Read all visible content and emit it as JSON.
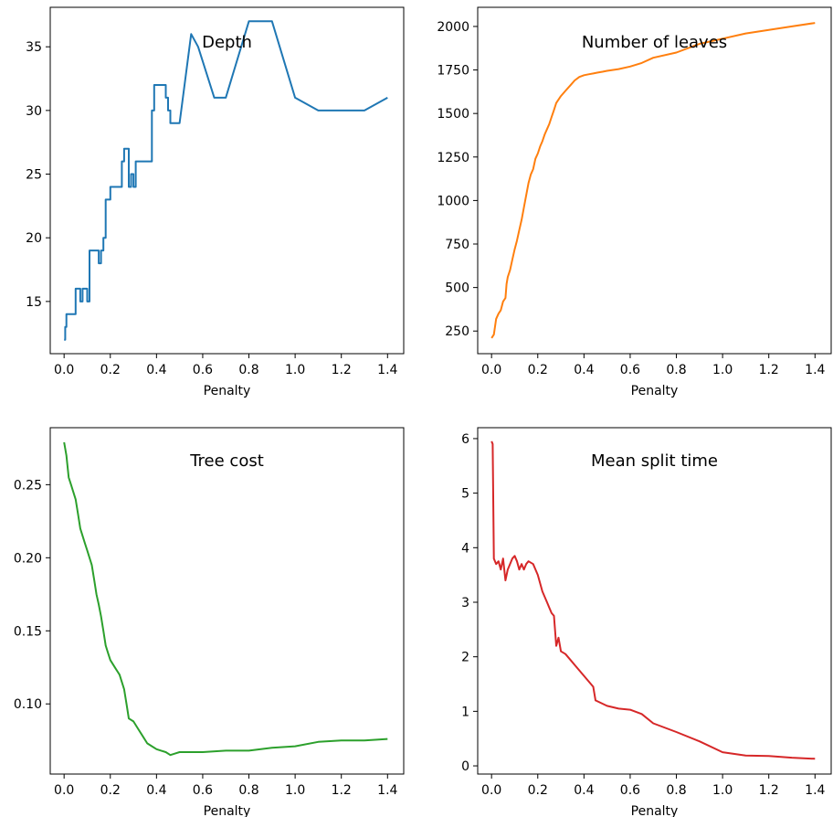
{
  "chart_data": [
    {
      "type": "line",
      "title": "Depth",
      "xlabel": "Penalty",
      "ylabel": "",
      "xlim": [
        -0.06,
        1.47
      ],
      "ylim": [
        10.9,
        38.1
      ],
      "xticks": [
        0.0,
        0.2,
        0.4,
        0.6,
        0.8,
        1.0,
        1.2,
        1.4
      ],
      "xtick_labels": [
        "0.0",
        "0.2",
        "0.4",
        "0.6",
        "0.8",
        "1.0",
        "1.2",
        "1.4"
      ],
      "yticks": [
        15,
        20,
        25,
        30,
        35
      ],
      "ytick_labels": [
        "15",
        "20",
        "25",
        "30",
        "35"
      ],
      "grid": false,
      "series": [
        {
          "color": "#1f77b4",
          "points": [
            [
              0.0,
              12
            ],
            [
              0.005,
              12
            ],
            [
              0.005,
              13
            ],
            [
              0.01,
              13
            ],
            [
              0.01,
              14
            ],
            [
              0.05,
              14
            ],
            [
              0.05,
              16
            ],
            [
              0.07,
              16
            ],
            [
              0.07,
              15
            ],
            [
              0.08,
              15
            ],
            [
              0.08,
              16
            ],
            [
              0.1,
              16
            ],
            [
              0.1,
              15
            ],
            [
              0.11,
              15
            ],
            [
              0.11,
              19
            ],
            [
              0.15,
              19
            ],
            [
              0.15,
              18
            ],
            [
              0.16,
              18
            ],
            [
              0.16,
              19
            ],
            [
              0.17,
              19
            ],
            [
              0.17,
              20
            ],
            [
              0.18,
              20
            ],
            [
              0.18,
              23
            ],
            [
              0.2,
              23
            ],
            [
              0.2,
              24
            ],
            [
              0.25,
              24
            ],
            [
              0.25,
              26
            ],
            [
              0.26,
              26
            ],
            [
              0.26,
              27
            ],
            [
              0.28,
              27
            ],
            [
              0.28,
              24
            ],
            [
              0.29,
              24
            ],
            [
              0.29,
              25
            ],
            [
              0.3,
              25
            ],
            [
              0.3,
              24
            ],
            [
              0.31,
              24
            ],
            [
              0.31,
              26
            ],
            [
              0.38,
              26
            ],
            [
              0.38,
              30
            ],
            [
              0.39,
              30
            ],
            [
              0.39,
              32
            ],
            [
              0.44,
              32
            ],
            [
              0.44,
              31
            ],
            [
              0.45,
              31
            ],
            [
              0.45,
              30
            ],
            [
              0.46,
              30
            ],
            [
              0.46,
              29
            ],
            [
              0.5,
              29
            ],
            [
              0.55,
              36
            ],
            [
              0.58,
              35
            ],
            [
              0.65,
              31
            ],
            [
              0.7,
              31
            ],
            [
              0.8,
              37
            ],
            [
              0.9,
              37
            ],
            [
              1.0,
              31
            ],
            [
              1.1,
              30
            ],
            [
              1.3,
              30
            ],
            [
              1.4,
              31
            ]
          ]
        }
      ]
    },
    {
      "type": "line",
      "title": "Number of leaves",
      "xlabel": "Penalty",
      "ylabel": "",
      "xlim": [
        -0.06,
        1.47
      ],
      "ylim": [
        120,
        2110
      ],
      "xticks": [
        0.0,
        0.2,
        0.4,
        0.6,
        0.8,
        1.0,
        1.2,
        1.4
      ],
      "xtick_labels": [
        "0.0",
        "0.2",
        "0.4",
        "0.6",
        "0.8",
        "1.0",
        "1.2",
        "1.4"
      ],
      "yticks": [
        250,
        500,
        750,
        1000,
        1250,
        1500,
        1750,
        2000
      ],
      "ytick_labels": [
        "250",
        "500",
        "750",
        "1000",
        "1250",
        "1500",
        "1750",
        "2000"
      ],
      "grid": false,
      "series": [
        {
          "color": "#ff7f0e",
          "points": [
            [
              0.0,
              210
            ],
            [
              0.01,
              230
            ],
            [
              0.02,
              320
            ],
            [
              0.03,
              350
            ],
            [
              0.04,
              370
            ],
            [
              0.05,
              420
            ],
            [
              0.06,
              440
            ],
            [
              0.065,
              520
            ],
            [
              0.07,
              560
            ],
            [
              0.08,
              600
            ],
            [
              0.09,
              660
            ],
            [
              0.1,
              720
            ],
            [
              0.11,
              770
            ],
            [
              0.12,
              830
            ],
            [
              0.13,
              890
            ],
            [
              0.14,
              960
            ],
            [
              0.15,
              1030
            ],
            [
              0.16,
              1100
            ],
            [
              0.17,
              1150
            ],
            [
              0.18,
              1180
            ],
            [
              0.19,
              1240
            ],
            [
              0.2,
              1270
            ],
            [
              0.21,
              1310
            ],
            [
              0.22,
              1340
            ],
            [
              0.23,
              1380
            ],
            [
              0.24,
              1410
            ],
            [
              0.25,
              1440
            ],
            [
              0.26,
              1480
            ],
            [
              0.27,
              1520
            ],
            [
              0.28,
              1560
            ],
            [
              0.29,
              1580
            ],
            [
              0.3,
              1600
            ],
            [
              0.32,
              1630
            ],
            [
              0.34,
              1660
            ],
            [
              0.36,
              1690
            ],
            [
              0.38,
              1710
            ],
            [
              0.4,
              1720
            ],
            [
              0.42,
              1725
            ],
            [
              0.44,
              1730
            ],
            [
              0.46,
              1735
            ],
            [
              0.48,
              1740
            ],
            [
              0.5,
              1745
            ],
            [
              0.55,
              1755
            ],
            [
              0.6,
              1770
            ],
            [
              0.65,
              1790
            ],
            [
              0.7,
              1820
            ],
            [
              0.8,
              1850
            ],
            [
              0.9,
              1900
            ],
            [
              1.0,
              1930
            ],
            [
              1.1,
              1960
            ],
            [
              1.2,
              1980
            ],
            [
              1.3,
              2000
            ],
            [
              1.4,
              2020
            ]
          ]
        }
      ]
    },
    {
      "type": "line",
      "title": "Tree cost",
      "xlabel": "Penalty",
      "ylabel": "",
      "xlim": [
        -0.06,
        1.47
      ],
      "ylim": [
        0.052,
        0.289
      ],
      "xticks": [
        0.0,
        0.2,
        0.4,
        0.6,
        0.8,
        1.0,
        1.2,
        1.4
      ],
      "xtick_labels": [
        "0.0",
        "0.2",
        "0.4",
        "0.6",
        "0.8",
        "1.0",
        "1.2",
        "1.4"
      ],
      "yticks": [
        0.1,
        0.15,
        0.2,
        0.25
      ],
      "ytick_labels": [
        "0.10",
        "0.15",
        "0.20",
        "0.25"
      ],
      "grid": false,
      "series": [
        {
          "color": "#2ca02c",
          "points": [
            [
              0.0,
              0.279
            ],
            [
              0.01,
              0.27
            ],
            [
              0.02,
              0.255
            ],
            [
              0.03,
              0.25
            ],
            [
              0.04,
              0.245
            ],
            [
              0.05,
              0.24
            ],
            [
              0.06,
              0.23
            ],
            [
              0.07,
              0.22
            ],
            [
              0.08,
              0.215
            ],
            [
              0.09,
              0.21
            ],
            [
              0.1,
              0.205
            ],
            [
              0.11,
              0.2
            ],
            [
              0.12,
              0.195
            ],
            [
              0.13,
              0.185
            ],
            [
              0.14,
              0.175
            ],
            [
              0.15,
              0.168
            ],
            [
              0.16,
              0.16
            ],
            [
              0.17,
              0.15
            ],
            [
              0.18,
              0.14
            ],
            [
              0.19,
              0.135
            ],
            [
              0.2,
              0.13
            ],
            [
              0.22,
              0.125
            ],
            [
              0.24,
              0.12
            ],
            [
              0.26,
              0.11
            ],
            [
              0.27,
              0.1
            ],
            [
              0.28,
              0.09
            ],
            [
              0.3,
              0.088
            ],
            [
              0.32,
              0.083
            ],
            [
              0.34,
              0.078
            ],
            [
              0.36,
              0.073
            ],
            [
              0.38,
              0.071
            ],
            [
              0.4,
              0.069
            ],
            [
              0.42,
              0.068
            ],
            [
              0.44,
              0.067
            ],
            [
              0.46,
              0.065
            ],
            [
              0.48,
              0.066
            ],
            [
              0.5,
              0.067
            ],
            [
              0.6,
              0.067
            ],
            [
              0.7,
              0.068
            ],
            [
              0.8,
              0.068
            ],
            [
              0.9,
              0.07
            ],
            [
              1.0,
              0.071
            ],
            [
              1.1,
              0.074
            ],
            [
              1.2,
              0.075
            ],
            [
              1.3,
              0.075
            ],
            [
              1.4,
              0.076
            ]
          ]
        }
      ]
    },
    {
      "type": "line",
      "title": "Mean split time",
      "xlabel": "Penalty",
      "ylabel": "",
      "xlim": [
        -0.06,
        1.47
      ],
      "ylim": [
        -0.15,
        6.2
      ],
      "xticks": [
        0.0,
        0.2,
        0.4,
        0.6,
        0.8,
        1.0,
        1.2,
        1.4
      ],
      "xtick_labels": [
        "0.0",
        "0.2",
        "0.4",
        "0.6",
        "0.8",
        "1.0",
        "1.2",
        "1.4"
      ],
      "yticks": [
        0,
        1,
        2,
        3,
        4,
        5,
        6
      ],
      "ytick_labels": [
        "0",
        "1",
        "2",
        "3",
        "4",
        "5",
        "6"
      ],
      "grid": false,
      "series": [
        {
          "color": "#d62728",
          "points": [
            [
              0.0,
              5.95
            ],
            [
              0.005,
              5.9
            ],
            [
              0.01,
              3.8
            ],
            [
              0.02,
              3.7
            ],
            [
              0.03,
              3.75
            ],
            [
              0.04,
              3.6
            ],
            [
              0.05,
              3.8
            ],
            [
              0.06,
              3.4
            ],
            [
              0.07,
              3.6
            ],
            [
              0.08,
              3.7
            ],
            [
              0.09,
              3.8
            ],
            [
              0.1,
              3.85
            ],
            [
              0.11,
              3.75
            ],
            [
              0.12,
              3.6
            ],
            [
              0.13,
              3.7
            ],
            [
              0.14,
              3.6
            ],
            [
              0.15,
              3.7
            ],
            [
              0.16,
              3.75
            ],
            [
              0.18,
              3.7
            ],
            [
              0.2,
              3.5
            ],
            [
              0.22,
              3.2
            ],
            [
              0.24,
              3.0
            ],
            [
              0.25,
              2.9
            ],
            [
              0.26,
              2.8
            ],
            [
              0.27,
              2.75
            ],
            [
              0.28,
              2.2
            ],
            [
              0.29,
              2.35
            ],
            [
              0.3,
              2.1
            ],
            [
              0.32,
              2.05
            ],
            [
              0.34,
              1.95
            ],
            [
              0.36,
              1.85
            ],
            [
              0.38,
              1.75
            ],
            [
              0.4,
              1.65
            ],
            [
              0.42,
              1.55
            ],
            [
              0.44,
              1.45
            ],
            [
              0.45,
              1.2
            ],
            [
              0.5,
              1.1
            ],
            [
              0.55,
              1.05
            ],
            [
              0.6,
              1.03
            ],
            [
              0.65,
              0.95
            ],
            [
              0.7,
              0.78
            ],
            [
              0.8,
              0.62
            ],
            [
              0.9,
              0.45
            ],
            [
              1.0,
              0.25
            ],
            [
              1.1,
              0.19
            ],
            [
              1.2,
              0.18
            ],
            [
              1.3,
              0.15
            ],
            [
              1.4,
              0.13
            ]
          ]
        }
      ]
    }
  ]
}
